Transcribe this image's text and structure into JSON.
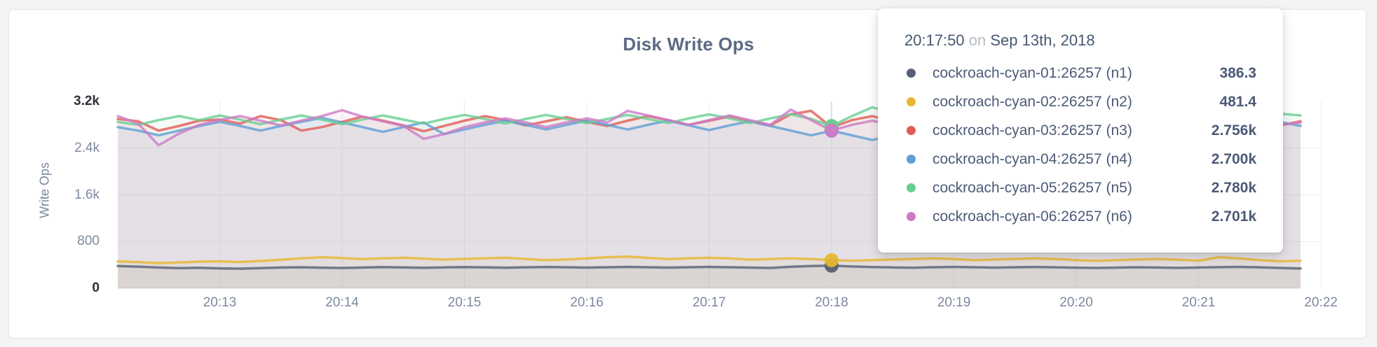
{
  "page": {
    "background": "#f4f4f6"
  },
  "card": {
    "title": "Disk Write Ops"
  },
  "y_axis": {
    "label": "Write Ops",
    "ticks": [
      {
        "label": "3.2k",
        "value": 3200,
        "emph": true
      },
      {
        "label": "2.4k",
        "value": 2400,
        "emph": false
      },
      {
        "label": "1.6k",
        "value": 1600,
        "emph": false
      },
      {
        "label": "800",
        "value": 800,
        "emph": false
      },
      {
        "label": "0",
        "value": 0,
        "emph": true
      }
    ]
  },
  "x_axis": {
    "ticks": [
      "20:13",
      "20:14",
      "20:15",
      "20:16",
      "20:17",
      "20:18",
      "20:19",
      "20:20",
      "20:21",
      "20:22"
    ]
  },
  "tooltip": {
    "time": "20:17:50",
    "conj": "on",
    "date": "Sep 13th, 2018",
    "rows": [
      {
        "name": "cockroach-cyan-01:26257 (n1)",
        "value": "386.3",
        "color": "#586075"
      },
      {
        "name": "cockroach-cyan-02:26257 (n2)",
        "value": "481.4",
        "color": "#e8b631"
      },
      {
        "name": "cockroach-cyan-03:26257 (n3)",
        "value": "2.756k",
        "color": "#e25b55"
      },
      {
        "name": "cockroach-cyan-04:26257 (n4)",
        "value": "2.700k",
        "color": "#5f9fd6"
      },
      {
        "name": "cockroach-cyan-05:26257 (n5)",
        "value": "2.780k",
        "color": "#69ce92"
      },
      {
        "name": "cockroach-cyan-06:26257 (n6)",
        "value": "2.701k",
        "color": "#cd7ac6"
      }
    ]
  },
  "chart_data": {
    "type": "line",
    "title": "Disk Write Ops",
    "ylabel": "Write Ops",
    "ylim": [
      0,
      3200
    ],
    "x_start": "20:12:10",
    "x_interval_seconds": 10,
    "x_tick_labels": [
      "20:13",
      "20:14",
      "20:15",
      "20:16",
      "20:17",
      "20:18",
      "20:19",
      "20:20",
      "20:21",
      "20:22"
    ],
    "grid": true,
    "legend_position": "tooltip",
    "highlight": {
      "index": 35,
      "time_label": "20:17:50",
      "values": {
        "n1": 386.3,
        "n2": 481.4,
        "n3": 2756,
        "n4": 2700,
        "n5": 2780,
        "n6": 2701
      }
    },
    "series": [
      {
        "name": "cockroach-cyan-01:26257 (n1)",
        "color": "#586075",
        "values": [
          380,
          370,
          355,
          345,
          350,
          340,
          335,
          345,
          355,
          360,
          352,
          348,
          355,
          362,
          356,
          350,
          357,
          363,
          358,
          352,
          358,
          364,
          359,
          353,
          359,
          365,
          360,
          354,
          360,
          366,
          360,
          354,
          348,
          368,
          380,
          386.3,
          373,
          363,
          357,
          352,
          359,
          365,
          359,
          353,
          359,
          364,
          358,
          352,
          347,
          354,
          360,
          355,
          349,
          355,
          361,
          366,
          358,
          348,
          338
        ]
      },
      {
        "name": "cockroach-cyan-02:26257 (n2)",
        "color": "#e8b631",
        "values": [
          460,
          448,
          430,
          442,
          456,
          462,
          450,
          468,
          490,
          512,
          532,
          518,
          500,
          512,
          522,
          508,
          490,
          502,
          514,
          522,
          502,
          482,
          492,
          512,
          532,
          542,
          520,
          500,
          512,
          522,
          510,
          490,
          502,
          512,
          500,
          481.4,
          470,
          482,
          492,
          502,
          512,
          500,
          482,
          492,
          502,
          512,
          500,
          482,
          470,
          482,
          492,
          502,
          490,
          472,
          532,
          510,
          482,
          462,
          472
        ]
      },
      {
        "name": "cockroach-cyan-03:26257 (n3)",
        "color": "#e25b55",
        "values": [
          2900,
          2860,
          2700,
          2780,
          2870,
          2890,
          2820,
          2950,
          2880,
          2700,
          2760,
          2850,
          2940,
          2870,
          2790,
          2690,
          2780,
          2870,
          2950,
          2880,
          2790,
          2860,
          2930,
          2850,
          2780,
          2870,
          2950,
          2880,
          2800,
          2870,
          2940,
          2860,
          2790,
          2980,
          3040,
          2756,
          2880,
          2950,
          2860,
          2780,
          2860,
          2930,
          2850,
          2770,
          2860,
          2930,
          2860,
          2790,
          2860,
          2930,
          2850,
          2780,
          2700,
          2780,
          2860,
          2930,
          2860,
          2790,
          2860
        ]
      },
      {
        "name": "cockroach-cyan-04:26257 (n4)",
        "color": "#5f9fd6",
        "values": [
          2760,
          2700,
          2620,
          2700,
          2780,
          2850,
          2780,
          2700,
          2780,
          2850,
          2920,
          2840,
          2760,
          2680,
          2760,
          2840,
          2640,
          2720,
          2800,
          2870,
          2800,
          2720,
          2800,
          2870,
          2800,
          2720,
          2800,
          2870,
          2790,
          2710,
          2790,
          2860,
          2780,
          2700,
          2620,
          2700,
          2620,
          2540,
          2620,
          2700,
          2780,
          2850,
          2780,
          2700,
          2780,
          2850,
          2780,
          2700,
          2780,
          2850,
          2780,
          2700,
          2780,
          2850,
          2780,
          2700,
          2780,
          2850,
          2780
        ]
      },
      {
        "name": "cockroach-cyan-05:26257 (n5)",
        "color": "#69ce92",
        "values": [
          2850,
          2800,
          2880,
          2950,
          2880,
          2960,
          2890,
          2810,
          2890,
          2960,
          2890,
          2810,
          2890,
          2960,
          2890,
          2820,
          2900,
          2970,
          2900,
          2820,
          2900,
          2970,
          2900,
          2830,
          2900,
          2970,
          2900,
          2830,
          2910,
          2980,
          2910,
          2830,
          2910,
          2980,
          2900,
          2780,
          2950,
          3100,
          3000,
          2850,
          2930,
          3000,
          2930,
          2850,
          2930,
          2990,
          2920,
          2850,
          2920,
          2990,
          2920,
          2850,
          2920,
          2990,
          2920,
          2850,
          2920,
          2990,
          2960
        ]
      },
      {
        "name": "cockroach-cyan-06:26257 (n6)",
        "color": "#cd7ac6",
        "values": [
          2950,
          2820,
          2450,
          2650,
          2800,
          2880,
          2950,
          2870,
          2790,
          2870,
          2950,
          3050,
          2940,
          2860,
          2780,
          2560,
          2640,
          2760,
          2840,
          2910,
          2840,
          2760,
          2840,
          2910,
          2840,
          3040,
          2960,
          2880,
          2800,
          2880,
          2960,
          2880,
          2800,
          3060,
          2880,
          2701,
          2800,
          2870,
          2800,
          2730,
          2800,
          2870,
          2800,
          2730,
          2800,
          2870,
          2800,
          2730,
          2800,
          2870,
          2800,
          2730,
          2800,
          2870,
          2800,
          2730,
          2870,
          2800,
          2840
        ]
      }
    ]
  }
}
